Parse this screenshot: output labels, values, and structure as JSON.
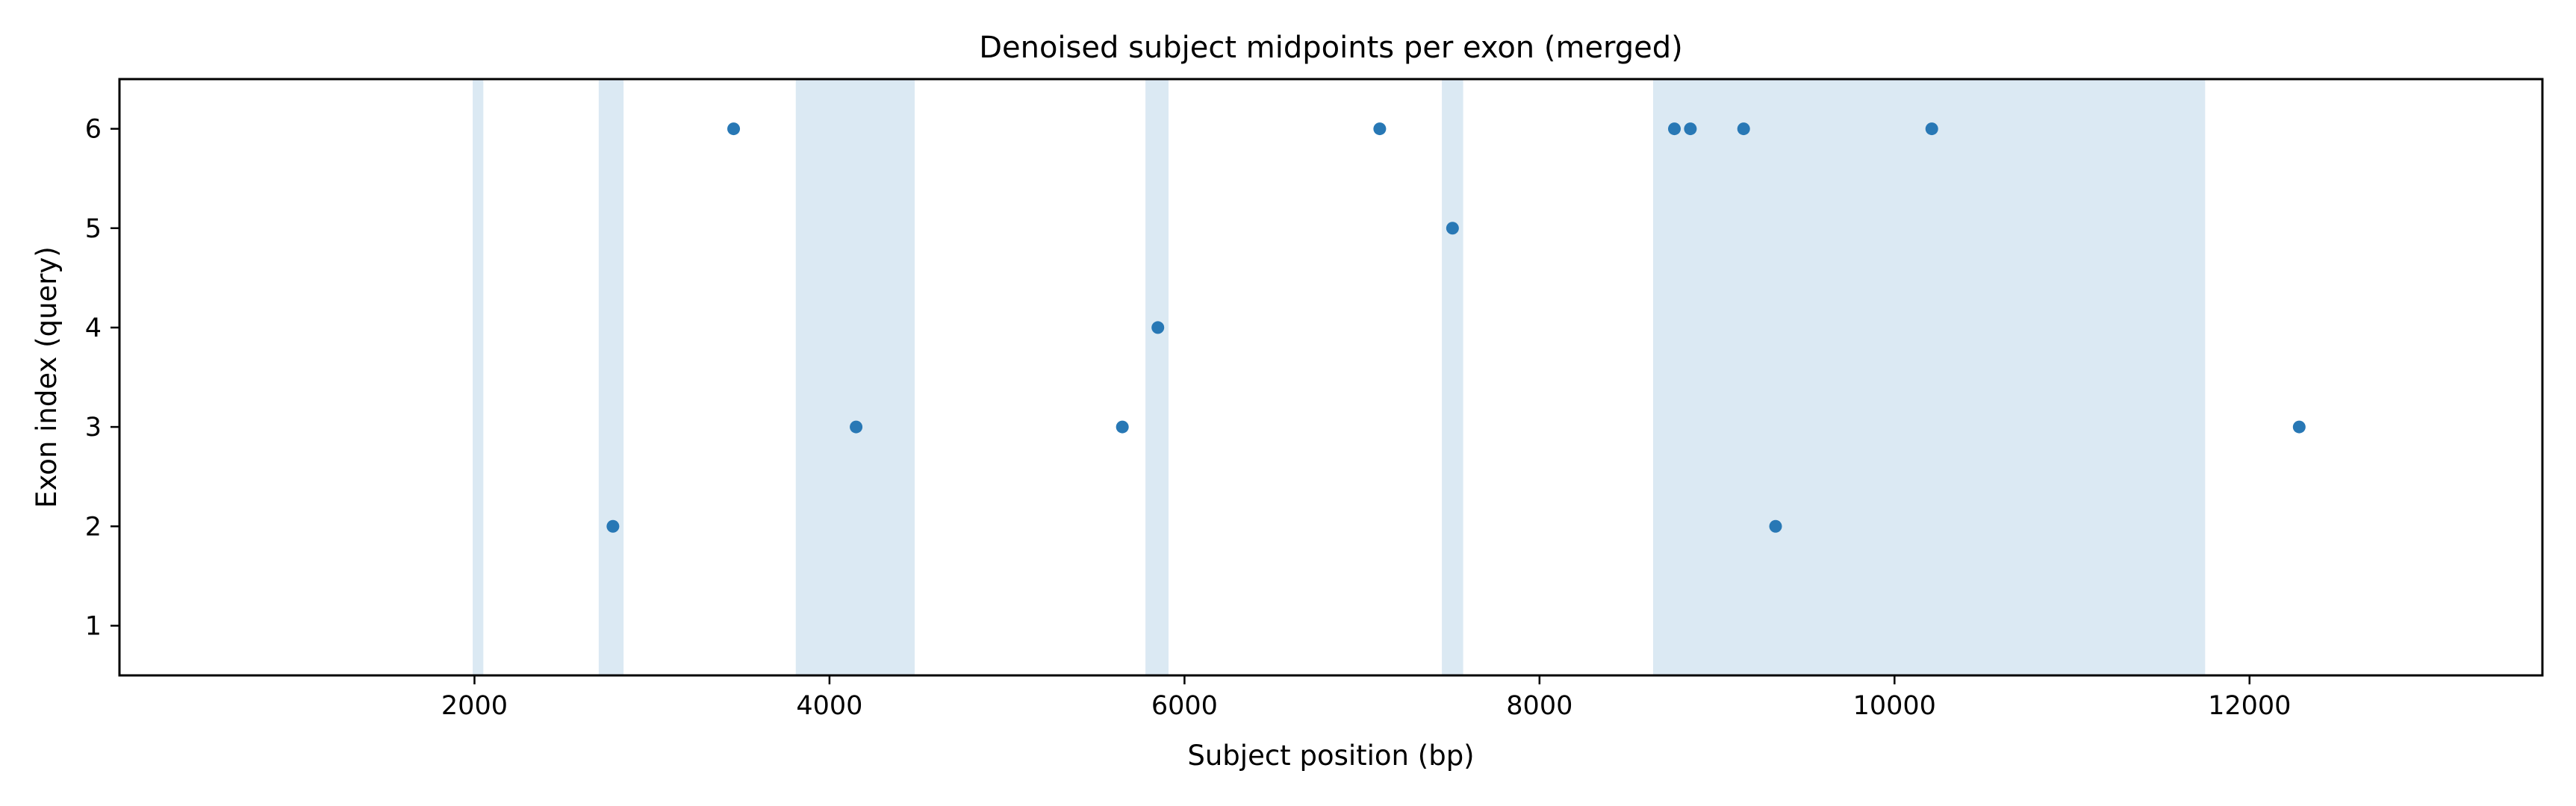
{
  "chart_data": {
    "type": "scatter",
    "title": "Denoised subject midpoints per exon (merged)",
    "xlabel": "Subject position (bp)",
    "ylabel": "Exon index (query)",
    "xlim": [
      0,
      13650
    ],
    "ylim": [
      0.5,
      6.5
    ],
    "xticks": [
      2000,
      4000,
      6000,
      8000,
      10000,
      12000
    ],
    "yticks": [
      1,
      2,
      3,
      4,
      5,
      6
    ],
    "grid": false,
    "colors": {
      "point": "#2878b5",
      "band": "#dbe9f3",
      "axis": "#000000"
    },
    "shaded_regions": [
      [
        1990,
        2050
      ],
      [
        2700,
        2840
      ],
      [
        3810,
        4480
      ],
      [
        5780,
        5910
      ],
      [
        7450,
        7570
      ],
      [
        8640,
        11750
      ]
    ],
    "points": [
      {
        "x": 2780,
        "y": 2
      },
      {
        "x": 3460,
        "y": 6
      },
      {
        "x": 4150,
        "y": 3
      },
      {
        "x": 5650,
        "y": 3
      },
      {
        "x": 5850,
        "y": 4
      },
      {
        "x": 7100,
        "y": 6
      },
      {
        "x": 7510,
        "y": 5
      },
      {
        "x": 8760,
        "y": 6
      },
      {
        "x": 8850,
        "y": 6
      },
      {
        "x": 9150,
        "y": 6
      },
      {
        "x": 9330,
        "y": 2
      },
      {
        "x": 10210,
        "y": 6
      },
      {
        "x": 12280,
        "y": 3
      }
    ]
  }
}
